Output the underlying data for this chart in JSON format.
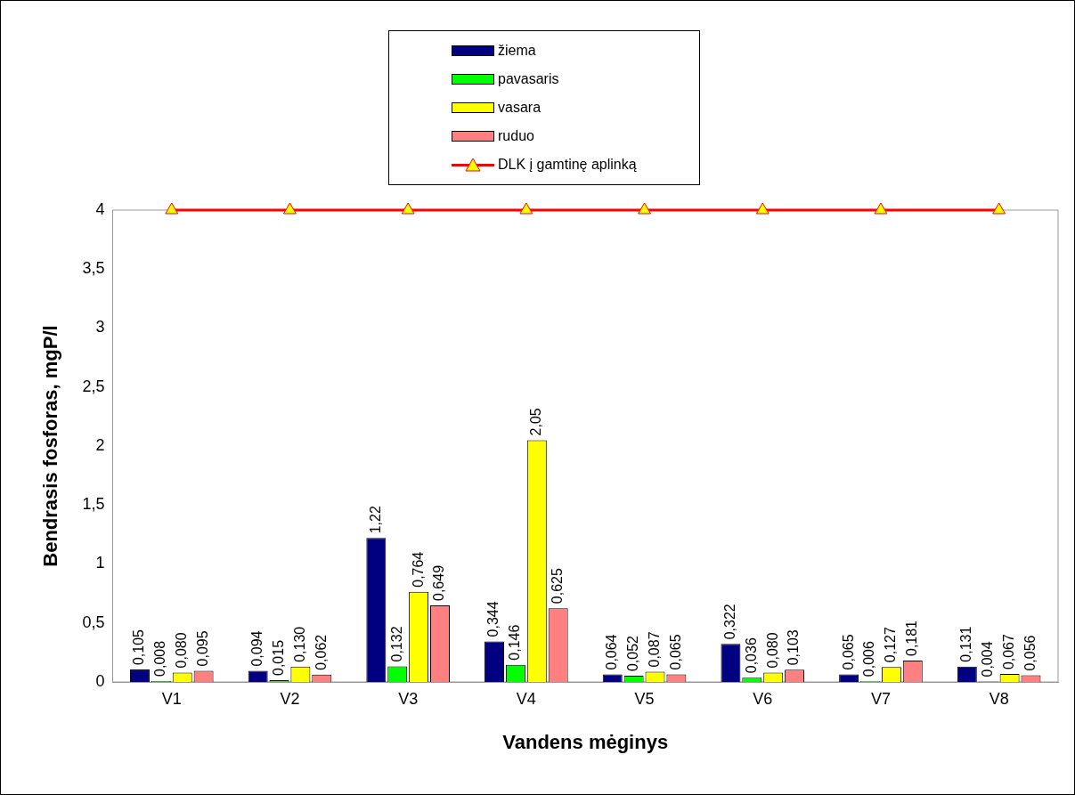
{
  "chart_data": {
    "type": "bar",
    "xlabel": "Vandens mėginys",
    "ylabel": "Bendrasis fosforas, mgP/l",
    "categories": [
      "V1",
      "V2",
      "V3",
      "V4",
      "V5",
      "V6",
      "V7",
      "V8"
    ],
    "series": [
      {
        "name": "žiema",
        "color": "#000080",
        "values": [
          0.105,
          0.094,
          1.22,
          0.344,
          0.064,
          0.322,
          0.065,
          0.131
        ],
        "value_labels": [
          "0,105",
          "0,094",
          "1,22",
          "0,344",
          "0,064",
          "0,322",
          "0,065",
          "0,131"
        ]
      },
      {
        "name": "pavasaris",
        "color": "#00ff00",
        "values": [
          0.008,
          0.015,
          0.132,
          0.146,
          0.052,
          0.036,
          0.006,
          0.004
        ],
        "value_labels": [
          "0,008",
          "0,015",
          "0,132",
          "0,146",
          "0,052",
          "0,036",
          "0,006",
          "0,004"
        ]
      },
      {
        "name": "vasara",
        "color": "#ffff00",
        "values": [
          0.08,
          0.13,
          0.764,
          2.05,
          0.087,
          0.08,
          0.127,
          0.067
        ],
        "value_labels": [
          "0,080",
          "0,130",
          "0,764",
          "2,05",
          "0,087",
          "0,080",
          "0,127",
          "0,067"
        ]
      },
      {
        "name": "ruduo",
        "color": "#ff8080",
        "values": [
          0.095,
          0.062,
          0.649,
          0.625,
          0.065,
          0.103,
          0.181,
          0.056
        ],
        "value_labels": [
          "0,095",
          "0,062",
          "0,649",
          "0,625",
          "0,065",
          "0,103",
          "0,181",
          "0,056"
        ]
      },
      {
        "name": "DLK į gamtinę aplinką",
        "type": "line",
        "color": "#ff0000",
        "marker": "triangle",
        "values": [
          4,
          4,
          4,
          4,
          4,
          4,
          4,
          4
        ]
      }
    ],
    "ylim": [
      0,
      4
    ],
    "yticks": [
      0,
      {
        "value": 0.5,
        "label": "0,5"
      },
      1,
      {
        "value": 1.5,
        "label": "1,5"
      },
      2,
      {
        "value": 2.5,
        "label": "2,5"
      },
      3,
      {
        "value": 3.5,
        "label": "3,5"
      },
      4
    ],
    "grid": false,
    "legend": "top"
  }
}
